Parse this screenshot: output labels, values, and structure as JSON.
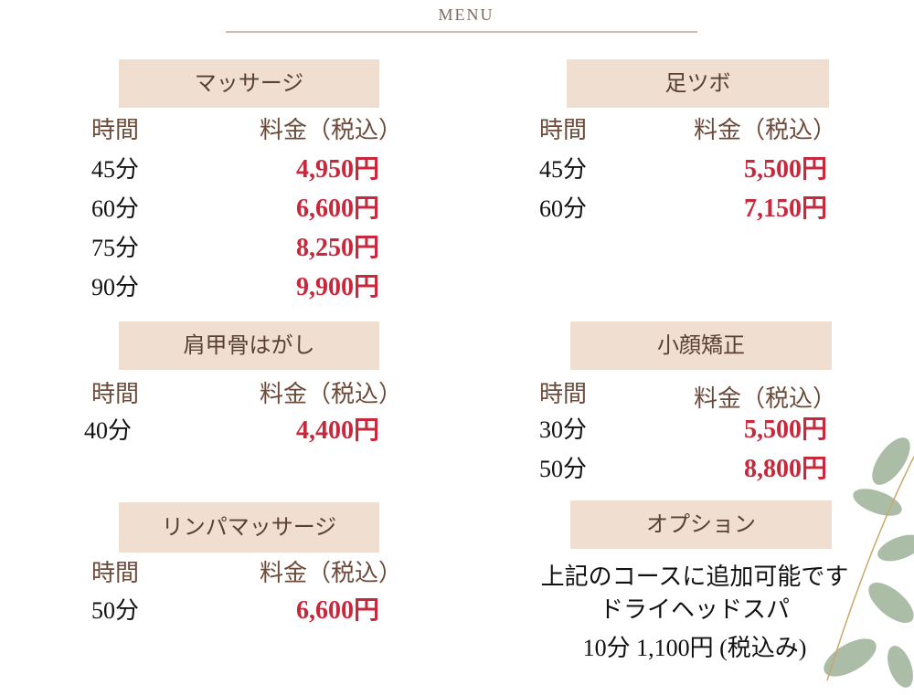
{
  "header": {
    "title": "MENU"
  },
  "sections": [
    {
      "title": "マッサージ",
      "headers": [
        "時間",
        "料金（税込）"
      ],
      "rows": [
        [
          "45分",
          "4,950円"
        ],
        [
          "60分",
          "6,600円"
        ],
        [
          "75分",
          "8,250円"
        ],
        [
          "90分",
          "9,900円"
        ]
      ]
    },
    {
      "title": "足ツボ",
      "headers": [
        "時間",
        "料金（税込）"
      ],
      "rows": [
        [
          "45分",
          "5,500円"
        ],
        [
          "60分",
          "7,150円"
        ]
      ]
    },
    {
      "title": "肩甲骨はがし",
      "headers": [
        "時間",
        "料金（税込）"
      ],
      "rows": [
        [
          "40分",
          "4,400円"
        ]
      ]
    },
    {
      "title": "小顔矯正",
      "headers": [
        "時間",
        "料金（税込）"
      ],
      "rows": [
        [
          "30分",
          "5,500円"
        ],
        [
          "50分",
          "8,800円"
        ]
      ]
    },
    {
      "title": "リンパマッサージ",
      "headers": [
        "時間",
        "料金（税込）"
      ],
      "rows": [
        [
          "50分",
          "6,600円"
        ]
      ]
    }
  ],
  "option": {
    "title": "オプション",
    "lines": [
      "上記のコースに追加可能です",
      "ドライヘッドスパ",
      "10分 1,100円 (税込み)"
    ]
  }
}
